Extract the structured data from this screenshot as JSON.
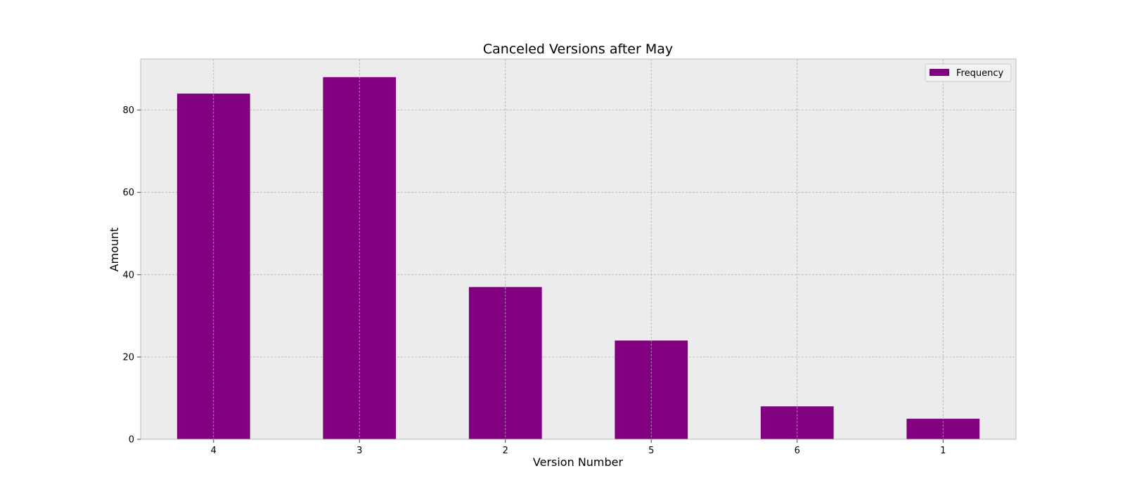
{
  "chart_data": {
    "type": "bar",
    "title": "Canceled Versions after May",
    "xlabel": "Version Number",
    "ylabel": "Amount",
    "categories": [
      "4",
      "3",
      "2",
      "5",
      "6",
      "1"
    ],
    "series": [
      {
        "name": "Frequency",
        "values": [
          84,
          88,
          37,
          24,
          8,
          5
        ]
      }
    ],
    "ylim": [
      0,
      92.4
    ],
    "yticks": [
      0,
      20,
      40,
      60,
      80
    ],
    "grid": true,
    "legend_position": "top-right",
    "colors": {
      "bar": "#800080",
      "plot_background": "#ececec",
      "grid": "#b0b0b0",
      "frame": "#bcbcbc"
    }
  }
}
